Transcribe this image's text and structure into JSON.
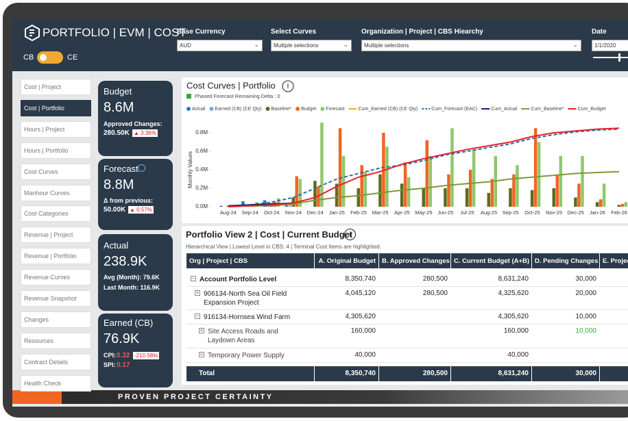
{
  "header": {
    "title": "PORTFOLIO | EVM | COST",
    "toggle_left": "CB",
    "toggle_right": "CE",
    "filters": [
      {
        "label": "Base Currency",
        "value": "AUD"
      },
      {
        "label": "Select Curves",
        "value": "Multiple selections"
      },
      {
        "label": "Organization | Project | CBS Hiearchy",
        "value": "Multiple selections"
      },
      {
        "label": "Date",
        "value": "1/1/2020"
      }
    ]
  },
  "nav": {
    "active": 1,
    "items": [
      "Cost | Project",
      "Cost | Portfolio",
      "Hours | Project",
      "Hours | Portfolio",
      "Cost Curves",
      "Manhour Curves",
      "Cost Categories",
      "Revenue | Project",
      "Revenue | Portfolio",
      "Revenue Curves",
      "Revenue Snapshot",
      "Changes",
      "Resources",
      "Contract Details",
      "Health Check"
    ]
  },
  "kpis": {
    "budget": {
      "title": "Budget",
      "value": "8.6M",
      "label": "Approved Changes:",
      "sub": "280.50K",
      "badge": "▲ 3.36%"
    },
    "forecast": {
      "title": "Forecast",
      "value": "8.8M",
      "label": "Δ from previous:",
      "sub": "50.00K",
      "badge": "▲ 0.57%"
    },
    "actual": {
      "title": "Actual",
      "value": "238.9K",
      "lines": [
        "Avg (Month): 79.6K",
        "Last Month: 116.9K"
      ]
    },
    "earned": {
      "title": "Earned (CB)",
      "value": "76.9K",
      "cpi_label": "CPI:",
      "cpi": "0.32",
      "cpi_badge": "-210.58%",
      "spi_label": "SPI:",
      "spi": "0.17"
    }
  },
  "chart_data": {
    "type": "bar",
    "title": "Cost Curves | Portfolio",
    "checkbox": "Phased Forecast Remaining Delta : 0",
    "y_label": "Monthly Values",
    "categories": [
      "Aug-24",
      "Sep-24",
      "Oct-24",
      "Nov-24",
      "Dec-24",
      "Jan-25",
      "Feb-25",
      "Mar-25",
      "Apr-25",
      "May-25",
      "Jun-25",
      "Jul-25",
      "Aug-25",
      "Sep-25",
      "Oct-25",
      "Nov-25",
      "Dec-25",
      "Jan-26",
      "Feb-26"
    ],
    "ylim": [
      0,
      0.95
    ],
    "yticks": [
      {
        "value": 0,
        "label": "0.0M"
      },
      {
        "value": 0.2,
        "label": "0.2M"
      },
      {
        "value": 0.4,
        "label": "0.4M"
      },
      {
        "value": 0.6,
        "label": "0.6M"
      },
      {
        "value": 0.8,
        "label": "0.8M"
      }
    ],
    "grid": false,
    "series": [
      {
        "name": "Actual",
        "type": "bar",
        "color": "#2e75d6",
        "values": [
          0.01,
          0.06,
          0.07,
          0.02,
          null,
          null,
          null,
          null,
          null,
          null,
          null,
          null,
          null,
          null,
          null,
          null,
          null,
          null,
          null
        ]
      },
      {
        "name": "Earned (CB) (CE Qty)",
        "type": "bar",
        "color": "#6fa8dc",
        "values": [
          null,
          0.02,
          0.02,
          0.01,
          null,
          null,
          null,
          null,
          null,
          null,
          null,
          null,
          null,
          null,
          null,
          null,
          null,
          null,
          null
        ]
      },
      {
        "name": "Baseline*",
        "type": "bar",
        "color": "#5a6e1e",
        "values": [
          0.01,
          0.02,
          0.04,
          0.1,
          0.28,
          0.25,
          0.2,
          0.35,
          0.25,
          0.2,
          0.2,
          0.2,
          0.15,
          0.2,
          0.18,
          0.2,
          0.1,
          0.05,
          0.02
        ]
      },
      {
        "name": "Budget",
        "type": "bar",
        "color": "#f26522",
        "values": [
          0.01,
          0.03,
          0.05,
          0.33,
          0.22,
          0.85,
          0.45,
          0.8,
          0.48,
          0.72,
          0.35,
          0.4,
          0.3,
          0.35,
          0.85,
          0.35,
          0.25,
          0.08,
          0.03
        ]
      },
      {
        "name": "Forecast",
        "type": "bar",
        "color": "#8fc86b",
        "values": [
          0.01,
          0.05,
          0.09,
          0.3,
          0.91,
          0.55,
          0.38,
          0.65,
          0.32,
          0.55,
          0.85,
          0.62,
          0.55,
          0.45,
          0.7,
          0.55,
          0.55,
          0.25,
          0.05
        ]
      },
      {
        "name": "Cum_Earned (CB) (CE Qty)",
        "type": "line",
        "color": "#f0a830",
        "values": [
          0.01,
          0.01,
          0.02,
          0.02,
          null,
          null,
          null,
          null,
          null,
          null,
          null,
          null,
          null,
          null,
          null,
          null,
          null,
          null,
          null
        ]
      },
      {
        "name": "Cum_Forecast (EAC)",
        "type": "line",
        "dash": true,
        "color": "#2d6da3",
        "values": [
          0,
          0.02,
          0.05,
          0.1,
          0.2,
          0.3,
          0.36,
          0.42,
          0.45,
          0.5,
          0.56,
          0.6,
          0.64,
          0.68,
          0.74,
          0.78,
          0.81,
          0.83,
          0.84
        ]
      },
      {
        "name": "Cum_Actual",
        "type": "line",
        "color": "#0a1f6b",
        "values": [
          0.01,
          0.02,
          0.03,
          0.04,
          null,
          null,
          null,
          null,
          null,
          null,
          null,
          null,
          null,
          null,
          null,
          null,
          null,
          null,
          null
        ]
      },
      {
        "name": "Cum_Baseline*",
        "type": "line",
        "color": "#7a9a3a",
        "values": [
          0,
          0.01,
          0.01,
          0.03,
          0.07,
          0.1,
          0.12,
          0.15,
          0.18,
          0.2,
          0.23,
          0.25,
          0.27,
          0.3,
          0.32,
          0.34,
          0.36,
          0.37,
          0.38
        ]
      },
      {
        "name": "Cum_Budget",
        "type": "line",
        "color": "#e8202a",
        "values": [
          0,
          0.01,
          0.02,
          0.04,
          0.1,
          0.22,
          0.32,
          0.38,
          0.46,
          0.52,
          0.57,
          0.62,
          0.66,
          0.7,
          0.76,
          0.8,
          0.82,
          0.84,
          0.85
        ]
      }
    ]
  },
  "table": {
    "title": "Portfolio View 2 | Cost | Current Budget",
    "subtitle": "Hierarchical View | Lowest Level in CBS: 4 | Terminal Cost Items are highlighted.",
    "columns": [
      "Org | Project | CBS",
      "A. Original Budget",
      "B. Approved Changes",
      "C. Current Budget (A+B)",
      "D. Pending Changes",
      "E. Projec"
    ],
    "rows": [
      {
        "level": 0,
        "expanded": true,
        "cells": [
          "Account Portfolio Level",
          "8,350,740",
          "280,500",
          "8,631,240",
          "30,000",
          null
        ]
      },
      {
        "level": 1,
        "expanded": false,
        "cells": [
          "906134-North Sea Oil Field Expansion Project",
          "4,045,120",
          "280,500",
          "4,325,620",
          "20,000",
          null
        ]
      },
      {
        "level": 1,
        "expanded": true,
        "cells": [
          "916134-Hornsea Wind Farm",
          "4,305,620",
          null,
          "4,305,620",
          "10,000",
          null
        ]
      },
      {
        "level": 2,
        "expanded": false,
        "cells": [
          "Site Access Roads and Laydown Areas",
          "160,000",
          null,
          "160,000",
          "10,000",
          null
        ],
        "highlight": {
          "column": 4,
          "color": "#3aa83a"
        }
      },
      {
        "level": 2,
        "expanded": false,
        "cells": [
          "Temporary Power Supply",
          "40,000",
          null,
          "40,000",
          null,
          null
        ]
      }
    ],
    "total": [
      "Total",
      "8,350,740",
      "280,500",
      "8,631,240",
      "30,000",
      null
    ]
  },
  "footer": {
    "tagline": "PROVEN PROJECT CERTAINTY"
  }
}
